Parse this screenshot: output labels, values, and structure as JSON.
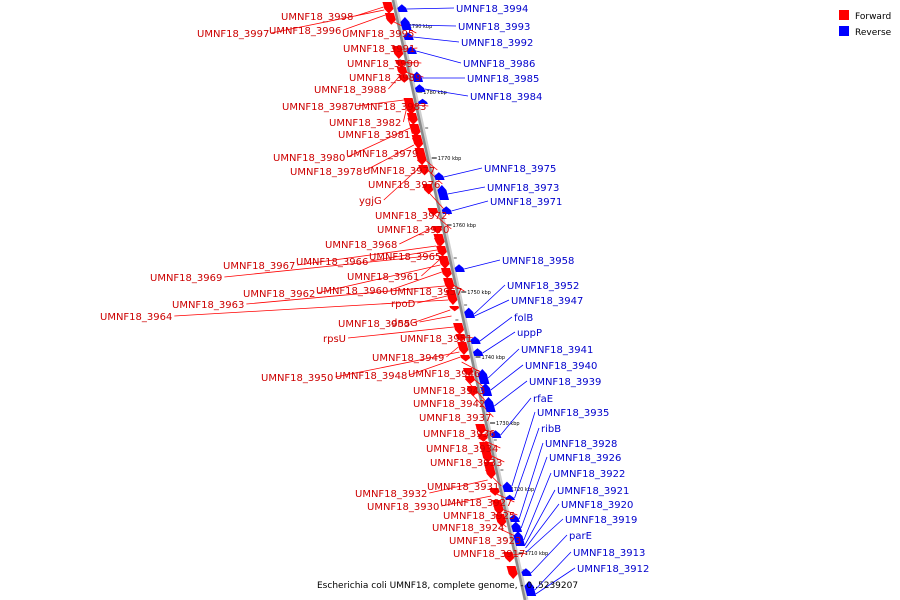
{
  "caption": "Escherichia coli UMNF18, complete genome, - 0..5239207",
  "legend": [
    {
      "label": "Forward",
      "color": "#ff0000"
    },
    {
      "label": "Reverse",
      "color": "#0000ff"
    }
  ],
  "ticks": [
    "1790 kbp",
    "1780 kbp",
    "1770 kbp",
    "1760 kbp",
    "1750 kbp",
    "1740 kbp",
    "1730 kbp",
    "1720 kbp",
    "1710 kbp"
  ],
  "forward_genes": [
    "UMNF18_3998",
    "UMNF18_3997",
    "UMNF18_3996",
    "UMNF18_3995",
    "UMNF18_3991",
    "UMNF18_3990",
    "UMNF18_3989",
    "UMNF18_3988",
    "UMNF18_3987",
    "UMNF18_3983",
    "UMNF18_3982",
    "UMNF18_3981",
    "UMNF18_3980",
    "UMNF18_3979",
    "UMNF18_3978",
    "UMNF18_3977",
    "UMNF18_3976",
    "ygjG",
    "UMNF18_3972",
    "UMNF18_3970",
    "UMNF18_3968",
    "UMNF18_3965",
    "UMNF18_3967",
    "UMNF18_3966",
    "UMNF18_3969",
    "UMNF18_3961",
    "UMNF18_3962",
    "UMNF18_3960",
    "UMNF18_3957",
    "UMNF18_3963",
    "rpoD",
    "UMNF18_3964",
    "UMNF18_3955",
    "dnaG",
    "rpsU",
    "UMNF18_3951",
    "UMNF18_3949",
    "UMNF18_3950",
    "UMNF18_3948",
    "UMNF18_3946",
    "UMNF18_3943",
    "UMNF18_3942",
    "UMNF18_3937",
    "UMNF18_3936",
    "UMNF18_3934",
    "UMNF18_3933",
    "UMNF18_3931",
    "UMNF18_3932",
    "UMNF18_3927",
    "UMNF18_3930",
    "UMNF18_3925",
    "UMNF18_3924",
    "UMNF18_3923",
    "UMNF18_3917"
  ],
  "reverse_genes": [
    "UMNF18_3994",
    "UMNF18_3993",
    "UMNF18_3992",
    "UMNF18_3986",
    "UMNF18_3985",
    "UMNF18_3984",
    "UMNF18_3975",
    "UMNF18_3973",
    "UMNF18_3971",
    "UMNF18_3958",
    "UMNF18_3952",
    "UMNF18_3947",
    "folB",
    "uppP",
    "UMNF18_3941",
    "UMNF18_3940",
    "UMNF18_3939",
    "rfaE",
    "UMNF18_3935",
    "ribB",
    "UMNF18_3928",
    "UMNF18_3926",
    "UMNF18_3922",
    "UMNF18_3921",
    "UMNF18_3920",
    "UMNF18_3919",
    "parE",
    "UMNF18_3913",
    "UMNF18_3912"
  ]
}
